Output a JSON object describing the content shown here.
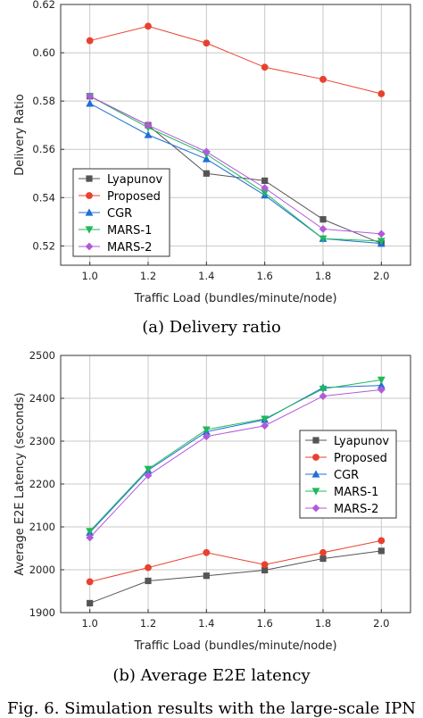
{
  "figure_caption": "Fig. 6.   Simulation results with the large-scale IPN",
  "chart_data": [
    {
      "type": "line",
      "caption": "(a)  Delivery ratio",
      "xlabel": "Traffic Load (bundles/minute/node)",
      "ylabel": "Delivery Ratio",
      "x": [
        1.0,
        1.2,
        1.4,
        1.6,
        1.8,
        2.0
      ],
      "x_ticks": [
        "1.0",
        "1.2",
        "1.4",
        "1.6",
        "1.8",
        "2.0"
      ],
      "xlim": [
        0.9,
        2.1
      ],
      "ylim": [
        0.512,
        0.62
      ],
      "y_ticks": [
        "0.52",
        "0.54",
        "0.56",
        "0.58",
        "0.60",
        "0.62"
      ],
      "grid": true,
      "legend_position": "bottom-left",
      "series": [
        {
          "name": "Lyapunov",
          "marker": "square",
          "color": "#555555",
          "values": [
            0.582,
            0.57,
            0.55,
            0.547,
            0.531,
            0.521
          ]
        },
        {
          "name": "Proposed",
          "marker": "circle",
          "color": "#e8412f",
          "values": [
            0.605,
            0.611,
            0.604,
            0.594,
            0.589,
            0.583
          ]
        },
        {
          "name": "CGR",
          "marker": "triangle-up",
          "color": "#1f6fd6",
          "values": [
            0.579,
            0.566,
            0.556,
            0.541,
            0.523,
            0.521
          ]
        },
        {
          "name": "MARS-1",
          "marker": "triangle-down",
          "color": "#1fb85a",
          "values": [
            0.582,
            0.569,
            0.558,
            0.542,
            0.523,
            0.522
          ]
        },
        {
          "name": "MARS-2",
          "marker": "diamond",
          "color": "#b15ad9",
          "values": [
            0.582,
            0.57,
            0.559,
            0.544,
            0.527,
            0.525
          ]
        }
      ]
    },
    {
      "type": "line",
      "caption": "(b)  Average E2E latency",
      "xlabel": "Traffic Load (bundles/minute/node)",
      "ylabel": "Average E2E Latency (seconds)",
      "x": [
        1.0,
        1.2,
        1.4,
        1.6,
        1.8,
        2.0
      ],
      "x_ticks": [
        "1.0",
        "1.2",
        "1.4",
        "1.6",
        "1.8",
        "2.0"
      ],
      "xlim": [
        0.9,
        2.1
      ],
      "ylim": [
        1900,
        2500
      ],
      "y_ticks": [
        "1900",
        "2000",
        "2100",
        "2200",
        "2300",
        "2400",
        "2500"
      ],
      "grid": true,
      "legend_position": "right",
      "series": [
        {
          "name": "Lyapunov",
          "marker": "square",
          "color": "#555555",
          "values": [
            1922,
            1974,
            1986,
            1999,
            2026,
            2044
          ]
        },
        {
          "name": "Proposed",
          "marker": "circle",
          "color": "#e8412f",
          "values": [
            1972,
            2005,
            2040,
            2012,
            2040,
            2068
          ]
        },
        {
          "name": "CGR",
          "marker": "triangle-up",
          "color": "#1f6fd6",
          "values": [
            2087,
            2232,
            2322,
            2350,
            2425,
            2430
          ]
        },
        {
          "name": "MARS-1",
          "marker": "triangle-down",
          "color": "#1fb85a",
          "values": [
            2090,
            2235,
            2327,
            2352,
            2422,
            2443
          ]
        },
        {
          "name": "MARS-2",
          "marker": "diamond",
          "color": "#b15ad9",
          "values": [
            2075,
            2220,
            2311,
            2336,
            2405,
            2420
          ]
        }
      ]
    }
  ]
}
